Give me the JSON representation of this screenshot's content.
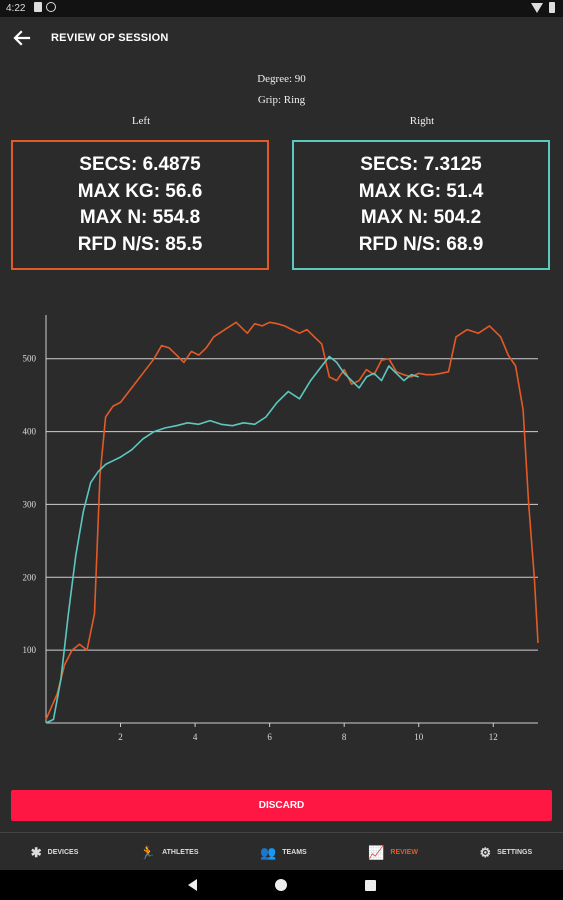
{
  "status_bar": {
    "time": "4:22"
  },
  "app_bar": {
    "title": "REVIEW OP SESSION",
    "back_icon": "arrow-left-icon"
  },
  "session": {
    "degree": "Degree: 90",
    "grip": "Grip: Ring",
    "left_label": "Left",
    "right_label": "Right"
  },
  "stats": {
    "left": {
      "secs": "SECS: 6.4875",
      "max_kg": "MAX KG: 56.6",
      "max_n": "MAX N: 554.8",
      "rfd": "RFD N/S: 85.5"
    },
    "right": {
      "secs": "SECS: 7.3125",
      "max_kg": "MAX KG: 51.4",
      "max_n": "MAX N: 504.2",
      "rfd": "RFD N/S: 68.9"
    }
  },
  "colors": {
    "left": "#e45a25",
    "right": "#5bc8c0",
    "discard": "#ff1744",
    "active_nav": "#e45a25"
  },
  "chart_data": {
    "type": "line",
    "xlim": [
      0,
      13.2
    ],
    "ylim": [
      0,
      560
    ],
    "x_ticks": [
      "2",
      "4",
      "6",
      "8",
      "10",
      "12"
    ],
    "y_ticks": [
      "100",
      "200",
      "300",
      "400",
      "500"
    ],
    "grid": true,
    "series": [
      {
        "name": "",
        "color": "#e45a25",
        "x": [
          0,
          0.3,
          0.5,
          0.7,
          0.9,
          1.1,
          1.3,
          1.45,
          1.6,
          1.8,
          2.0,
          2.3,
          2.6,
          2.9,
          3.1,
          3.3,
          3.5,
          3.7,
          3.9,
          4.1,
          4.3,
          4.5,
          4.8,
          5.1,
          5.4,
          5.6,
          5.8,
          6.0,
          6.2,
          6.4,
          6.6,
          6.8,
          7.0,
          7.2,
          7.4,
          7.6,
          7.8,
          8.0,
          8.2,
          8.4,
          8.6,
          8.8,
          9.0,
          9.2,
          9.4,
          9.6,
          9.8,
          10.0,
          10.2,
          10.4,
          10.6,
          10.8,
          11.0,
          11.3,
          11.6,
          11.9,
          12.2,
          12.4,
          12.6,
          12.8,
          12.95,
          13.1,
          13.2
        ],
        "y": [
          5,
          40,
          80,
          100,
          108,
          100,
          150,
          340,
          420,
          435,
          440,
          460,
          480,
          500,
          518,
          515,
          505,
          495,
          510,
          505,
          515,
          530,
          540,
          550,
          535,
          548,
          545,
          550,
          548,
          545,
          540,
          535,
          540,
          530,
          520,
          475,
          470,
          485,
          465,
          470,
          485,
          478,
          498,
          500,
          482,
          478,
          475,
          480,
          478,
          478,
          480,
          482,
          530,
          540,
          535,
          545,
          530,
          505,
          490,
          430,
          300,
          200,
          110
        ]
      },
      {
        "name": "",
        "color": "#5bc8c0",
        "x": [
          0,
          0.2,
          0.4,
          0.6,
          0.8,
          1.0,
          1.2,
          1.4,
          1.6,
          1.8,
          2.0,
          2.3,
          2.6,
          2.9,
          3.2,
          3.5,
          3.8,
          4.1,
          4.4,
          4.7,
          5.0,
          5.3,
          5.6,
          5.9,
          6.2,
          6.5,
          6.8,
          7.1,
          7.4,
          7.6,
          7.8,
          8.0,
          8.2,
          8.4,
          8.6,
          8.8,
          9.0,
          9.2,
          9.4,
          9.6,
          9.8,
          10.0
        ],
        "y": [
          0,
          5,
          60,
          150,
          230,
          290,
          330,
          345,
          355,
          360,
          365,
          375,
          390,
          400,
          405,
          408,
          412,
          410,
          415,
          410,
          408,
          412,
          410,
          420,
          440,
          455,
          445,
          470,
          490,
          503,
          495,
          480,
          470,
          460,
          475,
          480,
          470,
          490,
          480,
          470,
          478,
          475
        ]
      }
    ]
  },
  "discard_label": "DISCARD",
  "bottom_nav": [
    {
      "label": "DEVICES",
      "icon": "bluetooth-icon",
      "glyph": "✱",
      "active": false
    },
    {
      "label": "ATHLETES",
      "icon": "running-person-icon",
      "glyph": "🏃",
      "active": false
    },
    {
      "label": "TEAMS",
      "icon": "group-icon",
      "glyph": "👥",
      "active": false
    },
    {
      "label": "REVIEW",
      "icon": "chart-line-icon",
      "glyph": "📈",
      "active": true
    },
    {
      "label": "SETTINGS",
      "icon": "gears-icon",
      "glyph": "⚙",
      "active": false
    }
  ]
}
